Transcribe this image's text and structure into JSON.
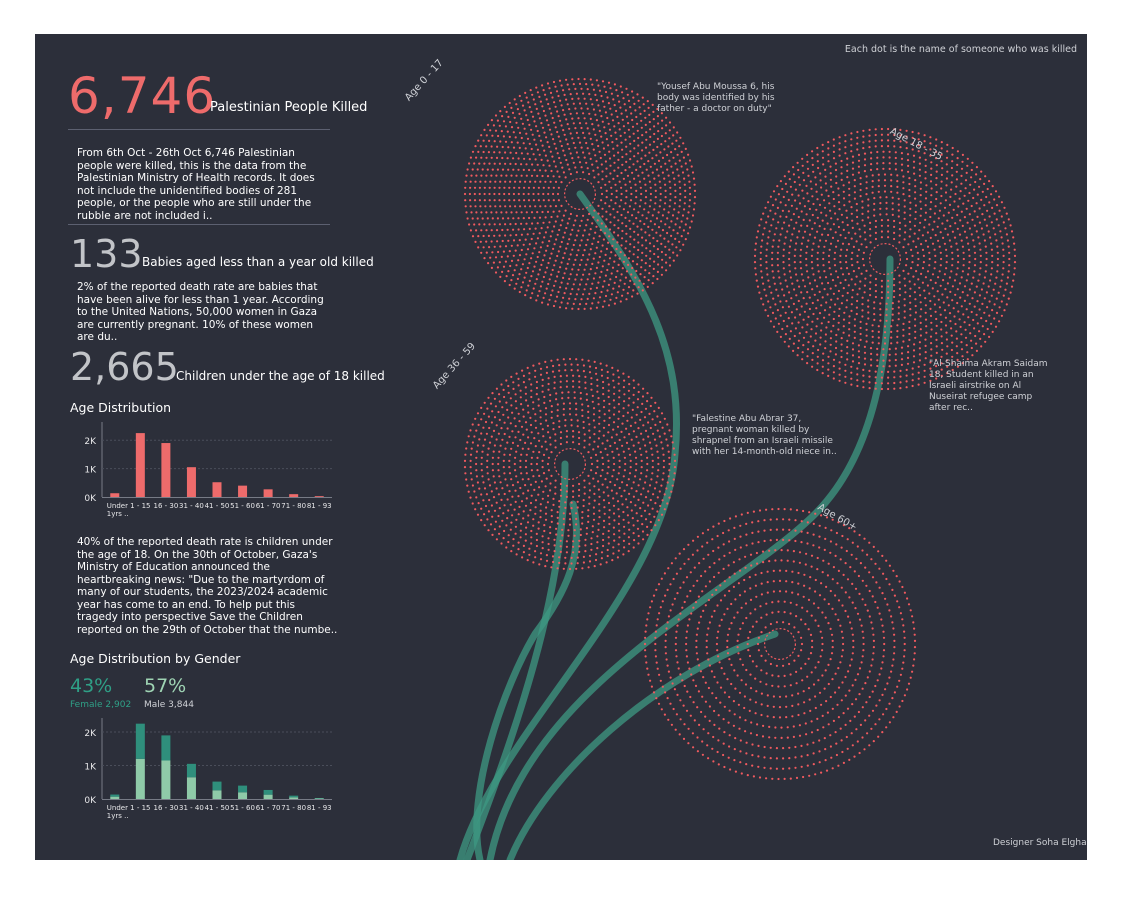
{
  "colors": {
    "background": "#2c2f3a",
    "accent_red": "#ee6b6b",
    "dot_red": "#f05a5f",
    "female_teal": "#2f8f7c",
    "male_green": "#8fcaa8",
    "stem_teal": "#3e9a83"
  },
  "note": "Each dot is the name of someone who was killed",
  "designer": "Designer Soha Elgha",
  "headline": {
    "number": "6,746",
    "label": "Palestinian People Killed",
    "text": "From 6th Oct - 26th Oct 6,746 Palestinian people were killed, this is the data from the Palestinian Ministry of Health records. It does not include the unidentified bodies of 281 people, or the people who are still under the rubble are not included i.."
  },
  "babies": {
    "number": "133",
    "label": "Babies aged less than a year old killed",
    "text": "2% of the reported death rate are babies that have been alive for less than 1 year. According to the United Nations, 50,000 women in Gaza are currently pregnant. 10% of these women are du.."
  },
  "children": {
    "number": "2,665",
    "label": "Children under the age of 18 killed",
    "text": "40% of the reported death rate is children under the age of 18. On the 30th of October, Gaza's Ministry of Education announced the heartbreaking news: \"Due to the martyrdom of many of our students, the 2023/2024 academic year has come to an end. To help put this tragedy into perspective Save the Children reported on the 29th of October that the numbe.."
  },
  "age_chart": {
    "title": "Age Distribution"
  },
  "gender_chart": {
    "title": "Age Distribution by Gender",
    "female_pct": "43%",
    "male_pct": "57%",
    "female_label": "Female 2,902",
    "male_label": "Male 3,844"
  },
  "flower_labels": {
    "age_0_17": "Age 0 - 17",
    "age_18_35": "Age 18 - 35",
    "age_36_59": "Age 36 - 59",
    "age_60": "Age 60+"
  },
  "quotes": {
    "q1": "\"Yousef Abu Moussa 6, his body was identified by his father - a doctor on duty\"",
    "q2": "\"Al-Shaima Akram Saidam 18, Student killed in an Israeli airstrike on Al Nuseirat refugee camp after rec..",
    "q3": "\"Falestine Abu Abrar 37, pregnant woman killed by shrapnel from an Israeli missile with her 14-month-old niece in.."
  },
  "chart_data": [
    {
      "type": "bar",
      "title": "Age Distribution",
      "categories": [
        "Under 1yrs ..",
        "1 - 15",
        "16 - 30",
        "31 - 40",
        "41 - 50",
        "51 - 60",
        "61 - 70",
        "71 - 80",
        "81 - 93"
      ],
      "values": [
        133,
        2250,
        1900,
        1050,
        520,
        400,
        270,
        100,
        30
      ],
      "yticks": [
        "0K",
        "1K",
        "2K"
      ],
      "ylim": [
        0,
        2500
      ],
      "grid": true
    },
    {
      "type": "bar",
      "title": "Age Distribution by Gender",
      "stacked": true,
      "categories": [
        "Under 1yrs ..",
        "1 - 15",
        "16 - 30",
        "31 - 40",
        "41 - 50",
        "51 - 60",
        "61 - 70",
        "71 - 80",
        "81 - 93"
      ],
      "series": [
        {
          "name": "Male",
          "values": [
            70,
            1200,
            1150,
            650,
            260,
            200,
            130,
            50,
            15
          ]
        },
        {
          "name": "Female",
          "values": [
            63,
            1050,
            750,
            400,
            260,
            200,
            140,
            50,
            15
          ]
        }
      ],
      "yticks": [
        "0K",
        "1K",
        "2K"
      ],
      "ylim": [
        0,
        2300
      ],
      "grid": true
    }
  ]
}
